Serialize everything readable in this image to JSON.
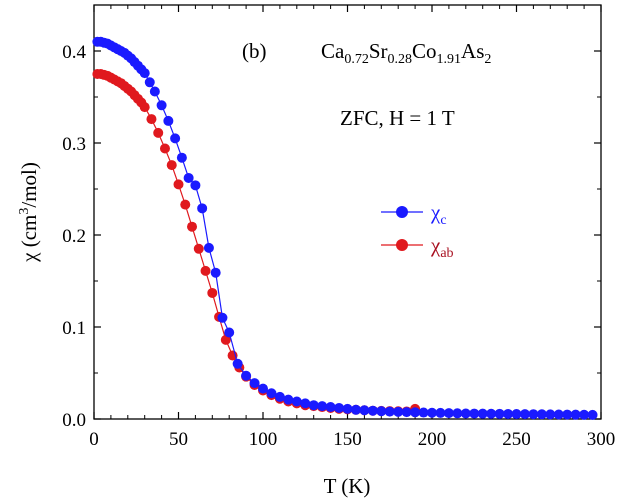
{
  "chart_data": {
    "type": "scatter",
    "panel_label": "(b)",
    "title": {
      "ca": "Ca",
      "ca_sub": "0.72",
      "sr": "Sr",
      "sr_sub": "0.28",
      "co": "Co",
      "co_sub": "1.91",
      "as": "As",
      "as_sub": "2"
    },
    "condition": "ZFC, H = 1 T",
    "xlabel": "T (K)",
    "ylabel": {
      "prefix": "χ (cm",
      "sup": "3",
      "suffix": "/mol)"
    },
    "xlim": [
      0,
      300
    ],
    "ylim": [
      0,
      0.45
    ],
    "xticks": [
      "0",
      "50",
      "100",
      "150",
      "200",
      "250",
      "300"
    ],
    "yticks": [
      "0.0",
      "0.1",
      "0.2",
      "0.3",
      "0.4"
    ],
    "series": [
      {
        "name": "χc",
        "name_base": "χ",
        "name_sub": "c",
        "color": "#1a1aff",
        "x": [
          2,
          4,
          6,
          8,
          10,
          12,
          14,
          16,
          18,
          20,
          22,
          24,
          26,
          28,
          30,
          33,
          36,
          40,
          44,
          48,
          52,
          56,
          60,
          64,
          68,
          72,
          76,
          80,
          85,
          90,
          95,
          100,
          105,
          110,
          115,
          120,
          125,
          130,
          135,
          140,
          145,
          150,
          155,
          160,
          165,
          170,
          175,
          180,
          185,
          190,
          195,
          200,
          205,
          210,
          215,
          220,
          225,
          230,
          235,
          240,
          245,
          250,
          255,
          260,
          265,
          270,
          275,
          280,
          285,
          290,
          295
        ],
        "y": [
          0.41,
          0.41,
          0.409,
          0.408,
          0.406,
          0.404,
          0.402,
          0.4,
          0.398,
          0.395,
          0.392,
          0.388,
          0.384,
          0.38,
          0.376,
          0.366,
          0.356,
          0.341,
          0.324,
          0.305,
          0.284,
          0.262,
          0.254,
          0.229,
          0.186,
          0.159,
          0.11,
          0.094,
          0.06,
          0.047,
          0.039,
          0.033,
          0.028,
          0.024,
          0.021,
          0.019,
          0.017,
          0.015,
          0.014,
          0.013,
          0.012,
          0.011,
          0.01,
          0.0095,
          0.009,
          0.0085,
          0.008,
          0.0078,
          0.0075,
          0.0073,
          0.007,
          0.0068,
          0.0066,
          0.0064,
          0.0062,
          0.006,
          0.0059,
          0.0058,
          0.0057,
          0.0056,
          0.0055,
          0.0054,
          0.0053,
          0.0052,
          0.0051,
          0.005,
          0.0049,
          0.0048,
          0.0047,
          0.0046,
          0.0045
        ]
      },
      {
        "name": "χab",
        "name_base": "χ",
        "name_sub": "ab",
        "color": "#e0191e",
        "x": [
          2,
          4,
          6,
          8,
          10,
          12,
          14,
          16,
          18,
          20,
          22,
          24,
          26,
          28,
          30,
          34,
          38,
          42,
          46,
          50,
          54,
          58,
          62,
          66,
          70,
          74,
          78,
          82,
          86,
          90,
          95,
          100,
          105,
          110,
          115,
          120,
          125,
          130,
          135,
          140,
          145,
          150,
          155,
          160,
          165,
          170,
          175,
          180,
          185,
          190
        ],
        "y": [
          0.375,
          0.375,
          0.374,
          0.373,
          0.371,
          0.369,
          0.367,
          0.365,
          0.362,
          0.359,
          0.356,
          0.352,
          0.348,
          0.344,
          0.339,
          0.326,
          0.311,
          0.294,
          0.276,
          0.255,
          0.233,
          0.209,
          0.185,
          0.161,
          0.137,
          0.111,
          0.086,
          0.069,
          0.056,
          0.046,
          0.037,
          0.031,
          0.026,
          0.022,
          0.019,
          0.017,
          0.015,
          0.014,
          0.013,
          0.012,
          0.011,
          0.0105,
          0.01,
          0.0095,
          0.009,
          0.0088,
          0.0086,
          0.0084,
          0.0082,
          0.011
        ]
      }
    ]
  }
}
